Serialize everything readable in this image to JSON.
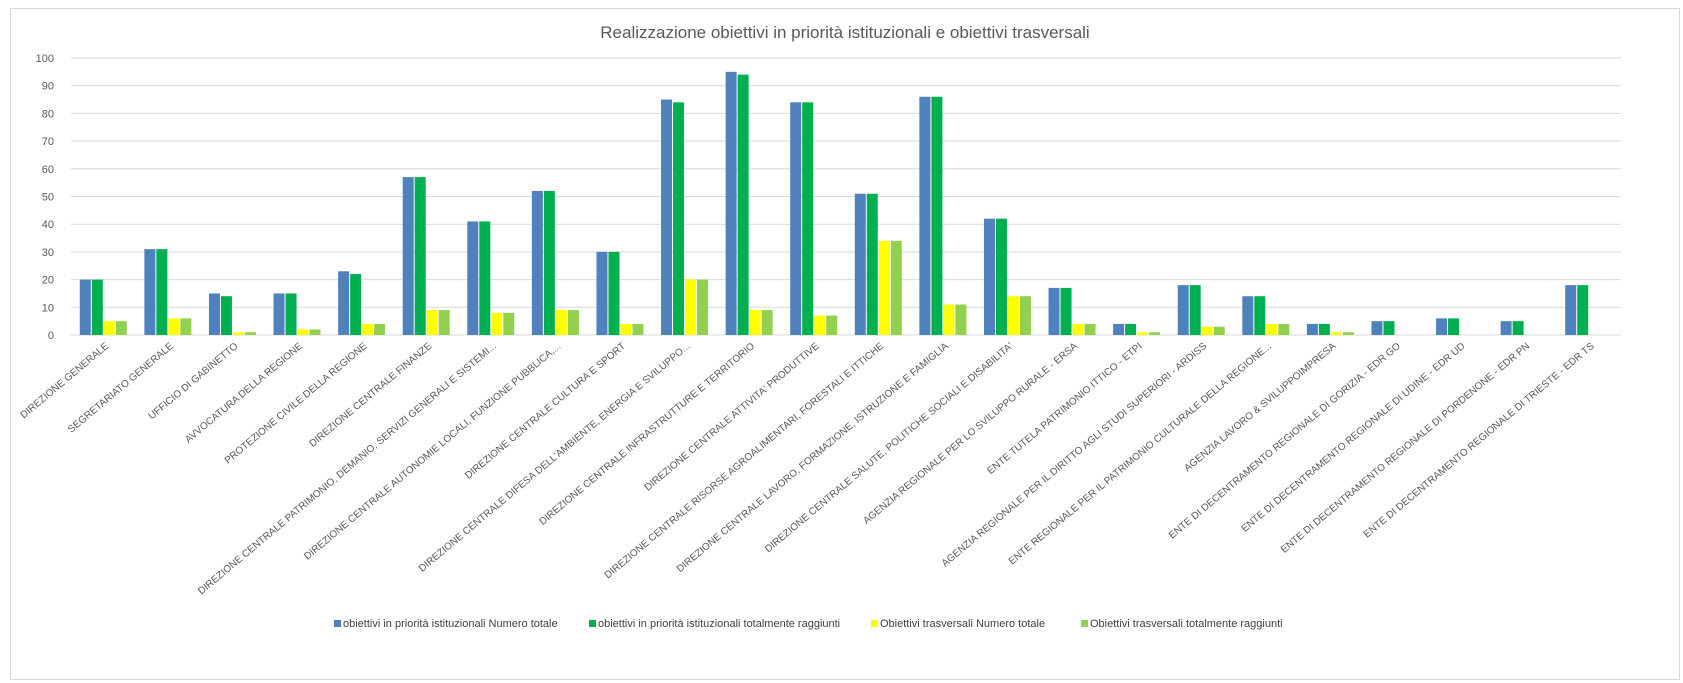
{
  "chart_data": {
    "type": "bar",
    "title": "Realizzazione obiettivi in priorità istituzionali e obiettivi trasversali",
    "xlabel": "",
    "ylabel": "",
    "ylim": [
      0,
      100
    ],
    "yticks": [
      0,
      10,
      20,
      30,
      40,
      50,
      60,
      70,
      80,
      90,
      100
    ],
    "grid": true,
    "legend_position": "bottom",
    "categories": [
      "DIREZIONE GENERALE",
      "SEGRETARIATO GENERALE",
      "UFFICIO DI GABINETTO",
      "AVVOCATURA DELLA REGIONE",
      "PROTEZIONE CIVILE DELLA REGIONE",
      "DIREZIONE CENTRALE FINANZE",
      "DIREZIONE CENTRALE PATRIMONIO, DEMANIO, SERVIZI GENERALI E SISTEMI...",
      "DIREZIONE CENTRALE AUTONOMIE LOCALI, FUNZIONE PUBBLICA,...",
      "DIREZIONE CENTRALE CULTURA E SPORT",
      "DIREZIONE CENTRALE DIFESA DELL'AMBIENTE, ENERGIA E SVILUPPO...",
      "DIREZIONE CENTRALE INFRASTRUTTURE E TERRITORIO",
      "DIREZIONE CENTRALE ATTIVITA' PRODUTTIVE",
      "DIREZIONE CENTRALE RISORSE AGROALIMENTARI, FORESTALI E ITTICHE",
      "DIREZIONE CENTRALE LAVORO, FORMAZIONE, ISTRUZIONE E FAMIGLIA",
      "DIREZIONE CENTRALE SALUTE, POLITICHE SOCIALI E DISABILITA'",
      "AGENZIA REGIONALE PER LO SVILUPPO RURALE - ERSA",
      "ENTE TUTELA PATRIMONIO ITTICO - ETPI",
      "AGENZIA REGIONALE PER IL DIRITTO AGLI STUDI SUPERIORI - ARDISS",
      "ENTE REGIONALE PER IL PATRIMONIO CULTURALE DELLA REGIONE...",
      "AGENZIA LAVORO & SVILUPPOIMPRESA",
      "ENTE DI DECENTRAMENTO REGIONALE DI GORIZIA - EDR GO",
      "ENTE DI DECENTRAMENTO REGIONALE DI UDINE - EDR UD",
      "ENTE DI DECENTRAMENTO REGIONALE DI PORDENONE - EDR PN",
      "ENTE DI DECENTRAMENTO REGIONALE DI TRIESTE - EDR TS"
    ],
    "series": [
      {
        "name": "obiettivi in priorità istituzionali  Numero totale",
        "color": "#4f81bd",
        "values": [
          20,
          31,
          15,
          15,
          23,
          57,
          41,
          52,
          30,
          85,
          95,
          84,
          51,
          86,
          42,
          17,
          4,
          18,
          14,
          4,
          5,
          6,
          5,
          18
        ]
      },
      {
        "name": "obiettivi in priorità istituzionali   totalmente raggiunti",
        "color": "#00b050",
        "values": [
          20,
          31,
          14,
          15,
          22,
          57,
          41,
          52,
          30,
          84,
          94,
          84,
          51,
          86,
          42,
          17,
          4,
          18,
          14,
          4,
          5,
          6,
          5,
          18
        ]
      },
      {
        "name": "Obiettivi trasversali Numero totale",
        "color": "#ffff00",
        "values": [
          5,
          6,
          1,
          2,
          4,
          9,
          8,
          9,
          4,
          20,
          9,
          7,
          34,
          11,
          14,
          4,
          1,
          3,
          4,
          1,
          0,
          0,
          0,
          0
        ]
      },
      {
        "name": "Obiettivi trasversali  totalmente raggiunti",
        "color": "#92d050",
        "values": [
          5,
          6,
          1,
          2,
          4,
          9,
          8,
          9,
          4,
          20,
          9,
          7,
          34,
          11,
          14,
          4,
          1,
          3,
          4,
          1,
          0,
          0,
          0,
          0
        ]
      }
    ]
  }
}
